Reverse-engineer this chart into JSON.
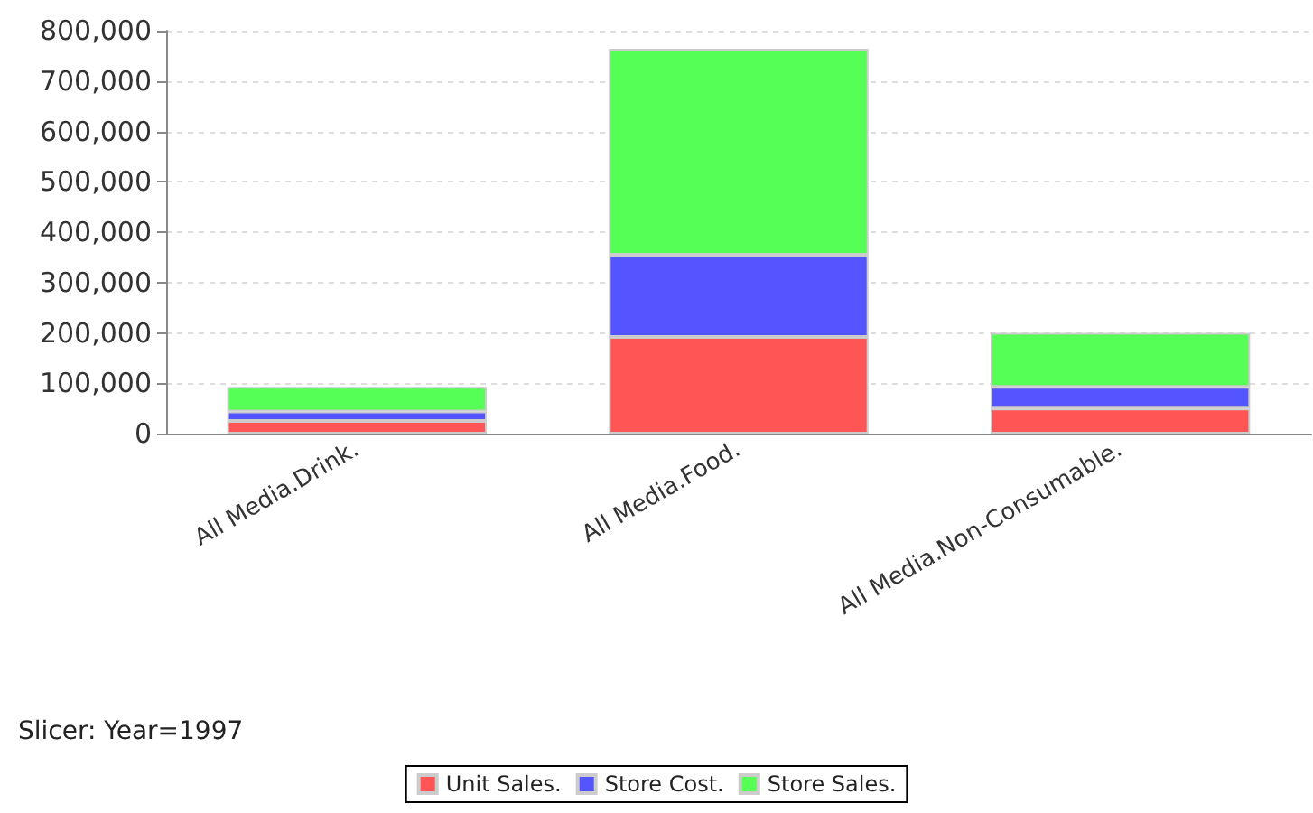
{
  "chart_data": {
    "type": "bar",
    "stacked": true,
    "categories": [
      "All Media.Drink.",
      "All Media.Food.",
      "All Media.Non-Consumable."
    ],
    "series": [
      {
        "name": "Unit Sales.",
        "color": "#ff5555",
        "values": [
          25000,
          192000,
          50000
        ]
      },
      {
        "name": "Store Cost.",
        "color": "#5555ff",
        "values": [
          19000,
          163000,
          43000
        ]
      },
      {
        "name": "Store Sales.",
        "color": "#55ff55",
        "values": [
          49000,
          409000,
          107000
        ]
      }
    ],
    "ylim": [
      0,
      800000
    ],
    "yticks": [
      0,
      {
        "value": 100000,
        "label": "100,000"
      },
      {
        "value": 200000,
        "label": "200,000"
      },
      {
        "value": 300000,
        "label": "300,000"
      },
      {
        "value": 400000,
        "label": "400,000"
      },
      {
        "value": 500000,
        "label": "500,000"
      },
      {
        "value": 600000,
        "label": "600,000"
      },
      {
        "value": 700000,
        "label": "700,000"
      },
      {
        "value": 800000,
        "label": "800,000"
      }
    ],
    "grid": "y",
    "legend": "bottom",
    "annotations": [
      "Slicer: Year=1997"
    ]
  }
}
